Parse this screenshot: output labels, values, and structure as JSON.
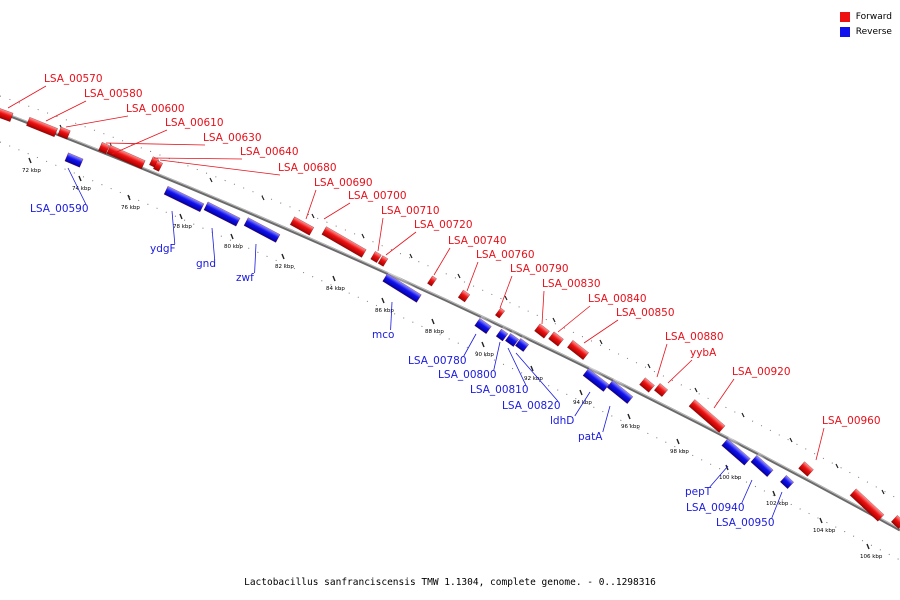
{
  "legend": [
    {
      "label": "Forward",
      "color": "#ee1111"
    },
    {
      "label": "Reverse",
      "color": "#1111ee"
    }
  ],
  "caption": "Lactobacillus sanfranciscensis TMW 1.1304, complete genome. - 0..1298316",
  "colors": {
    "forward": "#ee1111",
    "reverse": "#1111ee",
    "backbone": "#777777"
  },
  "ticks": [
    "72 kbp",
    "74 kbp",
    "76 kbp",
    "78 kbp",
    "80 kbp",
    "82 kbp",
    "84 kbp",
    "86 kbp",
    "88 kbp",
    "90 kbp",
    "92 kbp",
    "94 kbp",
    "96 kbp",
    "98 kbp",
    "100 kbp",
    "102 kbp",
    "104 kbp",
    "106 kbp"
  ],
  "forward_genes": [
    "LSA_00570",
    "LSA_00580",
    "LSA_00600",
    "LSA_00610",
    "LSA_00630",
    "LSA_00640",
    "LSA_00680",
    "LSA_00690",
    "LSA_00700",
    "LSA_00710",
    "LSA_00720",
    "LSA_00740",
    "LSA_00760",
    "LSA_00790",
    "LSA_00830",
    "LSA_00840",
    "LSA_00850",
    "LSA_00880",
    "yybA",
    "LSA_00920",
    "LSA_00960"
  ],
  "reverse_genes": [
    "LSA_00590",
    "ydgF",
    "gnd",
    "zwf",
    "mco",
    "LSA_00780",
    "LSA_00800",
    "LSA_00810",
    "LSA_00820",
    "ldhD",
    "patA",
    "pepT",
    "LSA_00940",
    "LSA_00950"
  ]
}
